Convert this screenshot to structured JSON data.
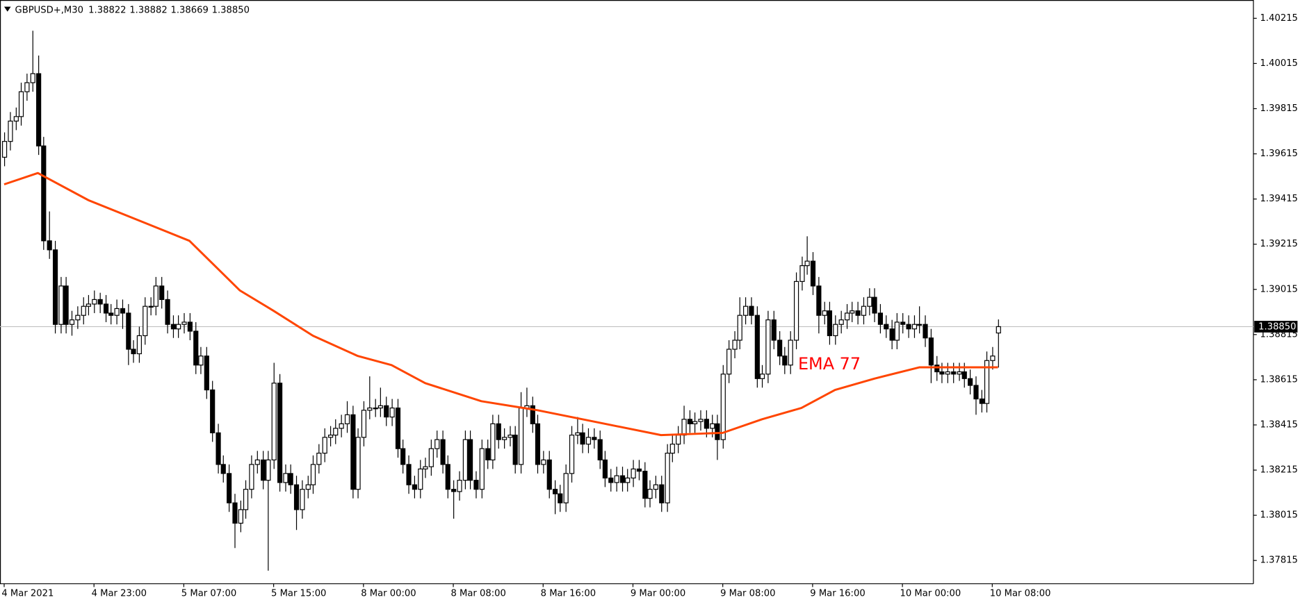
{
  "header": {
    "symbol": "GBPUSD+,M30",
    "ohlc_labels": [
      "1.38822",
      "1.38882",
      "1.38669",
      "1.38850"
    ]
  },
  "chart_data": {
    "type": "candlestick",
    "title": "GBPUSD+,M30",
    "bull_color": "#ffffff",
    "bear_color": "#000000",
    "wick_color": "#000000",
    "grid": false,
    "ylim": [
      1.37712,
      1.40296
    ],
    "yticks": [
      1.40215,
      1.40015,
      1.39815,
      1.39615,
      1.39415,
      1.39215,
      1.39015,
      1.38815,
      1.38615,
      1.38415,
      1.38215,
      1.38015,
      1.37815
    ],
    "categories": [
      "4 Mar 2021",
      null,
      null,
      null,
      null,
      null,
      null,
      null,
      null,
      null,
      null,
      null,
      null,
      null,
      null,
      null,
      "4 Mar 23:00",
      null,
      null,
      null,
      null,
      null,
      null,
      null,
      null,
      null,
      null,
      null,
      null,
      null,
      null,
      null,
      "5 Mar 07:00",
      null,
      null,
      null,
      null,
      null,
      null,
      null,
      null,
      null,
      null,
      null,
      null,
      null,
      null,
      null,
      "5 Mar 15:00",
      null,
      null,
      null,
      null,
      null,
      null,
      null,
      null,
      null,
      null,
      null,
      null,
      null,
      null,
      null,
      "8 Mar 00:00",
      null,
      null,
      null,
      null,
      null,
      null,
      null,
      null,
      null,
      null,
      null,
      null,
      null,
      null,
      null,
      "8 Mar 08:00",
      null,
      null,
      null,
      null,
      null,
      null,
      null,
      null,
      null,
      null,
      null,
      null,
      null,
      null,
      null,
      "8 Mar 16:00",
      null,
      null,
      null,
      null,
      null,
      null,
      null,
      null,
      null,
      null,
      null,
      null,
      null,
      null,
      null,
      "9 Mar 00:00",
      null,
      null,
      null,
      null,
      null,
      null,
      null,
      null,
      null,
      null,
      null,
      null,
      null,
      null,
      null,
      "9 Mar 08:00",
      null,
      null,
      null,
      null,
      null,
      null,
      null,
      null,
      null,
      null,
      null,
      null,
      null,
      null,
      null,
      "9 Mar 16:00",
      null,
      null,
      null,
      null,
      null,
      null,
      null,
      null,
      null,
      null,
      null,
      null,
      null,
      null,
      null,
      "10 Mar 00:00",
      null,
      null,
      null,
      null,
      null,
      null,
      null,
      null,
      null,
      null,
      null,
      null,
      null,
      null,
      null,
      "10 Mar 08:00",
      null
    ],
    "open": [
      1.396,
      1.3967,
      1.3976,
      1.3978,
      1.3989,
      1.3993,
      1.3997,
      1.3965,
      1.3923,
      1.3919,
      1.3886,
      1.3903,
      1.3886,
      1.3888,
      1.389,
      1.3894,
      1.3895,
      1.3897,
      1.3895,
      1.3891,
      1.389,
      1.3893,
      1.3891,
      1.3875,
      1.3873,
      1.3881,
      1.3894,
      1.3894,
      1.3903,
      1.3897,
      1.3886,
      1.3884,
      1.3886,
      1.3887,
      1.3883,
      1.3868,
      1.3872,
      1.3857,
      1.3838,
      1.3824,
      1.382,
      1.3807,
      1.3798,
      1.3804,
      1.3813,
      1.3824,
      1.3826,
      1.3817,
      1.3826,
      1.386,
      1.3816,
      1.382,
      1.3815,
      1.3804,
      1.3813,
      1.3815,
      1.3824,
      1.3829,
      1.3836,
      1.3837,
      1.384,
      1.3842,
      1.3846,
      1.3813,
      1.3836,
      1.3848,
      1.3849,
      1.3849,
      1.385,
      1.3845,
      1.3849,
      1.3831,
      1.3824,
      1.3815,
      1.3813,
      1.3822,
      1.3823,
      1.3831,
      1.3835,
      1.3824,
      1.3813,
      1.3812,
      1.3817,
      1.3835,
      1.3817,
      1.3813,
      1.3831,
      1.3826,
      1.3842,
      1.3835,
      1.3836,
      1.3837,
      1.3824,
      1.3849,
      1.385,
      1.3842,
      1.3824,
      1.3826,
      1.3813,
      1.3811,
      1.3807,
      1.382,
      1.3837,
      1.3838,
      1.3833,
      1.3836,
      1.3835,
      1.3826,
      1.3818,
      1.3816,
      1.3819,
      1.3816,
      1.3818,
      1.3822,
      1.3821,
      1.3809,
      1.3813,
      1.3815,
      1.3807,
      1.3829,
      1.3833,
      1.3837,
      1.3844,
      1.3842,
      1.3843,
      1.3844,
      1.384,
      1.3842,
      1.3835,
      1.3864,
      1.3875,
      1.3879,
      1.389,
      1.3894,
      1.389,
      1.3862,
      1.3864,
      1.3888,
      1.3879,
      1.3872,
      1.3868,
      1.3879,
      1.3905,
      1.3912,
      1.3914,
      1.3903,
      1.389,
      1.3892,
      1.3881,
      1.3886,
      1.3888,
      1.3891,
      1.3892,
      1.389,
      1.3894,
      1.3898,
      1.3891,
      1.3886,
      1.3884,
      1.3879,
      1.3887,
      1.3886,
      1.3884,
      1.3886,
      1.3886,
      1.388,
      1.3868,
      1.3865,
      1.3864,
      1.3865,
      1.3864,
      1.3865,
      1.3862,
      1.3859,
      1.3853,
      1.3851,
      1.387,
      1.38822
    ],
    "high": [
      1.3971,
      1.398,
      1.3982,
      1.3993,
      1.3997,
      1.4016,
      1.4005,
      1.3969,
      1.3936,
      1.3923,
      1.3907,
      1.3907,
      1.3892,
      1.3894,
      1.3898,
      1.3899,
      1.3901,
      1.39,
      1.3899,
      1.3895,
      1.3897,
      1.3897,
      1.3895,
      1.3879,
      1.3885,
      1.3898,
      1.3898,
      1.3907,
      1.3907,
      1.3901,
      1.389,
      1.389,
      1.3891,
      1.3891,
      1.3887,
      1.3876,
      1.3876,
      1.3861,
      1.3842,
      1.3828,
      1.3824,
      1.3811,
      1.3808,
      1.3817,
      1.3828,
      1.383,
      1.383,
      1.383,
      1.3869,
      1.3864,
      1.3824,
      1.3824,
      1.3819,
      1.3817,
      1.3819,
      1.3828,
      1.3833,
      1.384,
      1.3841,
      1.3844,
      1.3846,
      1.3852,
      1.385,
      1.384,
      1.3852,
      1.3863,
      1.3853,
      1.3858,
      1.3854,
      1.3853,
      1.3853,
      1.3835,
      1.3828,
      1.3819,
      1.3826,
      1.3827,
      1.3835,
      1.3839,
      1.3839,
      1.3828,
      1.3817,
      1.3821,
      1.3839,
      1.3839,
      1.3821,
      1.3835,
      1.3835,
      1.3846,
      1.3846,
      1.384,
      1.3841,
      1.3841,
      1.3856,
      1.3858,
      1.3854,
      1.3846,
      1.383,
      1.383,
      1.3817,
      1.3815,
      1.3824,
      1.3841,
      1.3845,
      1.3842,
      1.384,
      1.384,
      1.3839,
      1.383,
      1.3822,
      1.3823,
      1.3823,
      1.3822,
      1.3826,
      1.3826,
      1.3825,
      1.3817,
      1.3819,
      1.3819,
      1.3833,
      1.3837,
      1.3841,
      1.385,
      1.3848,
      1.3847,
      1.3848,
      1.3848,
      1.3846,
      1.3846,
      1.3868,
      1.3879,
      1.3883,
      1.3898,
      1.3898,
      1.3898,
      1.3894,
      1.3868,
      1.3892,
      1.3892,
      1.3883,
      1.3876,
      1.3883,
      1.3909,
      1.3916,
      1.3925,
      1.3918,
      1.3907,
      1.3896,
      1.3896,
      1.389,
      1.3892,
      1.3895,
      1.3896,
      1.3896,
      1.3898,
      1.3902,
      1.3902,
      1.3895,
      1.389,
      1.3888,
      1.3891,
      1.3891,
      1.389,
      1.389,
      1.3894,
      1.389,
      1.3884,
      1.3872,
      1.3869,
      1.3869,
      1.3869,
      1.3869,
      1.3869,
      1.3866,
      1.3863,
      1.3857,
      1.3874,
      1.3876,
      1.38882
    ],
    "low": [
      1.3956,
      1.3963,
      1.3972,
      1.3974,
      1.3985,
      1.3989,
      1.3961,
      1.3919,
      1.3915,
      1.3882,
      1.3882,
      1.3882,
      1.3881,
      1.3884,
      1.3886,
      1.389,
      1.3891,
      1.3891,
      1.3887,
      1.3886,
      1.3886,
      1.3884,
      1.3868,
      1.3869,
      1.3869,
      1.3877,
      1.389,
      1.389,
      1.3893,
      1.3882,
      1.388,
      1.388,
      1.3882,
      1.3879,
      1.3864,
      1.3864,
      1.3853,
      1.3834,
      1.382,
      1.3816,
      1.3803,
      1.3787,
      1.3794,
      1.38,
      1.3809,
      1.382,
      1.3813,
      1.3777,
      1.3822,
      1.3812,
      1.3812,
      1.3811,
      1.3795,
      1.38,
      1.3809,
      1.3811,
      1.382,
      1.3825,
      1.3832,
      1.3833,
      1.3836,
      1.3838,
      1.3809,
      1.3809,
      1.3832,
      1.3844,
      1.3845,
      1.3845,
      1.3841,
      1.3841,
      1.3827,
      1.382,
      1.3811,
      1.3809,
      1.3809,
      1.3818,
      1.3819,
      1.3827,
      1.382,
      1.3809,
      1.38,
      1.3808,
      1.3813,
      1.3813,
      1.3809,
      1.3809,
      1.3822,
      1.3822,
      1.3831,
      1.3831,
      1.3832,
      1.382,
      1.382,
      1.3845,
      1.3838,
      1.382,
      1.382,
      1.3809,
      1.3802,
      1.3803,
      1.3803,
      1.3816,
      1.3833,
      1.3829,
      1.3829,
      1.3831,
      1.3822,
      1.3814,
      1.3812,
      1.3812,
      1.3812,
      1.3812,
      1.3814,
      1.3817,
      1.3805,
      1.3805,
      1.3809,
      1.3803,
      1.3803,
      1.3825,
      1.3829,
      1.3833,
      1.3838,
      1.3838,
      1.3839,
      1.3836,
      1.3836,
      1.3826,
      1.3831,
      1.386,
      1.3871,
      1.3875,
      1.3886,
      1.3886,
      1.3858,
      1.3858,
      1.386,
      1.3875,
      1.3868,
      1.3864,
      1.3864,
      1.3875,
      1.3901,
      1.3908,
      1.3899,
      1.3882,
      1.3886,
      1.3877,
      1.3877,
      1.3882,
      1.3884,
      1.3887,
      1.3886,
      1.3886,
      1.389,
      1.3887,
      1.3882,
      1.388,
      1.3875,
      1.3875,
      1.3882,
      1.388,
      1.388,
      1.3882,
      1.3876,
      1.386,
      1.3861,
      1.386,
      1.386,
      1.386,
      1.3861,
      1.3858,
      1.3855,
      1.3846,
      1.3847,
      1.3847,
      1.3866,
      1.38669
    ],
    "close": [
      1.3967,
      1.3976,
      1.3978,
      1.3989,
      1.3993,
      1.3997,
      1.3965,
      1.3923,
      1.3919,
      1.3886,
      1.3903,
      1.3886,
      1.3888,
      1.389,
      1.3894,
      1.3895,
      1.3897,
      1.3895,
      1.3891,
      1.389,
      1.3893,
      1.3891,
      1.3875,
      1.3873,
      1.3881,
      1.3894,
      1.3894,
      1.3903,
      1.3897,
      1.3886,
      1.3884,
      1.3886,
      1.3887,
      1.3883,
      1.3868,
      1.3872,
      1.3857,
      1.3838,
      1.3824,
      1.382,
      1.3807,
      1.3798,
      1.3804,
      1.3813,
      1.3824,
      1.3826,
      1.3817,
      1.3826,
      1.386,
      1.3816,
      1.382,
      1.3815,
      1.3804,
      1.3813,
      1.3815,
      1.3824,
      1.3829,
      1.3836,
      1.3837,
      1.384,
      1.3842,
      1.3846,
      1.3813,
      1.3836,
      1.3848,
      1.3849,
      1.3849,
      1.385,
      1.3845,
      1.3849,
      1.3831,
      1.3824,
      1.3815,
      1.3813,
      1.3822,
      1.3823,
      1.3831,
      1.3835,
      1.3824,
      1.3813,
      1.3812,
      1.3817,
      1.3835,
      1.3817,
      1.3813,
      1.3831,
      1.3826,
      1.3842,
      1.3835,
      1.3836,
      1.3837,
      1.3824,
      1.3849,
      1.385,
      1.3842,
      1.3824,
      1.3826,
      1.3813,
      1.3811,
      1.3807,
      1.382,
      1.3837,
      1.3838,
      1.3833,
      1.3836,
      1.3835,
      1.3826,
      1.3818,
      1.3816,
      1.3819,
      1.3816,
      1.3818,
      1.3822,
      1.3821,
      1.3809,
      1.3813,
      1.3815,
      1.3807,
      1.3829,
      1.3833,
      1.3837,
      1.3844,
      1.3842,
      1.3843,
      1.3844,
      1.384,
      1.3842,
      1.3835,
      1.3864,
      1.3875,
      1.3879,
      1.389,
      1.3894,
      1.389,
      1.3862,
      1.3864,
      1.3888,
      1.3879,
      1.3872,
      1.3868,
      1.3879,
      1.3905,
      1.3912,
      1.3914,
      1.3903,
      1.389,
      1.3892,
      1.3881,
      1.3886,
      1.3888,
      1.3891,
      1.3892,
      1.389,
      1.3894,
      1.3898,
      1.3891,
      1.3886,
      1.3884,
      1.3879,
      1.3887,
      1.3886,
      1.3884,
      1.3886,
      1.3886,
      1.388,
      1.3868,
      1.3865,
      1.3864,
      1.3865,
      1.3864,
      1.3865,
      1.3862,
      1.3859,
      1.3853,
      1.3851,
      1.387,
      1.3872,
      1.3885
    ],
    "ema": {
      "name": "EMA 77",
      "color": "#ff4500",
      "x": [
        0,
        6,
        15,
        25,
        33,
        42,
        48,
        55,
        63,
        69,
        75,
        85,
        95,
        105,
        117,
        128,
        135,
        142,
        148,
        155,
        163,
        170,
        177
      ],
      "values": [
        1.3948,
        1.3953,
        1.3941,
        1.3931,
        1.3923,
        1.3901,
        1.3892,
        1.3881,
        1.3872,
        1.3868,
        1.386,
        1.3852,
        1.3848,
        1.3843,
        1.3837,
        1.3838,
        1.3844,
        1.3849,
        1.3857,
        1.3862,
        1.3867,
        1.3867,
        1.3867
      ]
    },
    "annotation_color": "#ff0000"
  }
}
